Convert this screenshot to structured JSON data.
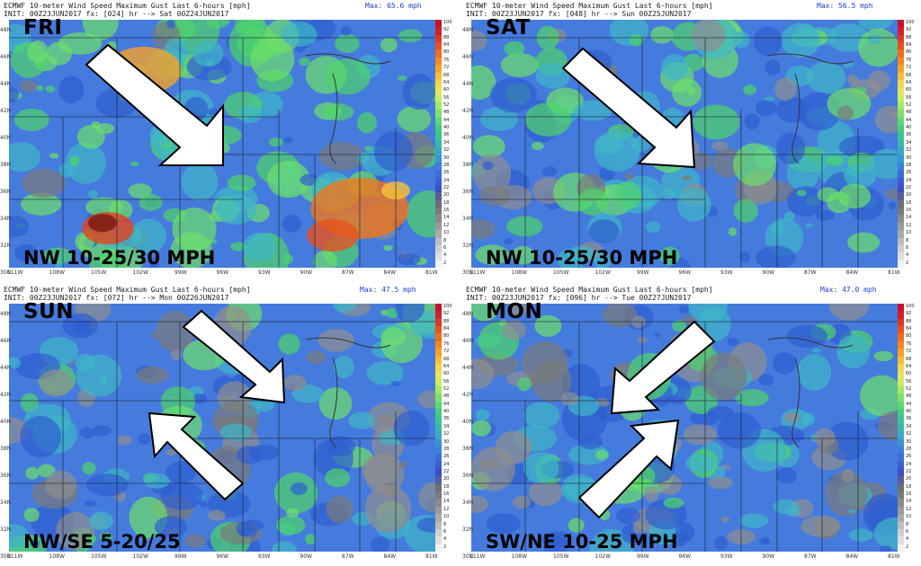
{
  "legend": {
    "levels": [
      "100",
      "92",
      "88",
      "84",
      "80",
      "76",
      "72",
      "68",
      "64",
      "60",
      "56",
      "52",
      "48",
      "44",
      "40",
      "36",
      "34",
      "32",
      "30",
      "28",
      "26",
      "24",
      "22",
      "20",
      "18",
      "16",
      "14",
      "12",
      "10",
      "8",
      "6",
      "4",
      "2"
    ],
    "colors": [
      "#c8102e",
      "#d2202a",
      "#dc3a24",
      "#e6521e",
      "#ee6e1c",
      "#f4881e",
      "#f8a22a",
      "#f8be3a",
      "#f4d44c",
      "#e6e45c",
      "#c8ec64",
      "#a4e864",
      "#7ee06a",
      "#5cd874",
      "#44cc80",
      "#3ec494",
      "#3ab8ac",
      "#38a8c4",
      "#3a94d4",
      "#3c80dc",
      "#3c6cdc",
      "#3c5cd4",
      "#3e4ec8",
      "#5a5e9c",
      "#6e6e78",
      "#7a7a7a",
      "#8a8a8a",
      "#9a9a9a",
      "#aaaaaa",
      "#bdbdbd",
      "#cfcfcf",
      "#e0e0e0",
      "#f2f2f2"
    ]
  },
  "lat_labels": [
    "48N",
    "46N",
    "44N",
    "42N",
    "40N",
    "38N",
    "36N",
    "34N",
    "32N",
    "30N"
  ],
  "lon_labels": [
    "111W",
    "108W",
    "105W",
    "102W",
    "99W",
    "96W",
    "93W",
    "90W",
    "87W",
    "84W",
    "81W"
  ],
  "colors": {
    "arrow_fill": "#ffffff",
    "arrow_stroke": "#000000",
    "max_text": "#1a3fd8",
    "map_blue": "#3a6fd8",
    "map_green": "#4fd46a"
  },
  "panels": [
    {
      "header_line1": "ECMWF 10-meter Wind Speed Maximum Gust Last 6-hours [mph]",
      "header_line2": "INIT: 00Z23JUN2017 fx: [024] hr --> Sat 00Z24JUN2017",
      "max": "Max: 65.6 mph",
      "day": "FRI",
      "wind": "NW 10-25/30 MPH",
      "arrows": [
        {
          "direction": "SE"
        }
      ]
    },
    {
      "header_line1": "ECMWF 10-meter Wind Speed Maximum Gust Last 6-hours [mph]",
      "header_line2": "INIT: 00Z23JUN2017 fx: [048] hr --> Sun 00Z25JUN2017",
      "max": "Max: 56.5 mph",
      "day": "SAT",
      "wind": "NW 10-25/30 MPH",
      "arrows": [
        {
          "direction": "SE"
        }
      ]
    },
    {
      "header_line1": "ECMWF 10-meter Wind Speed Maximum Gust Last 6-hours [mph]",
      "header_line2": "INIT: 00Z23JUN2017 fx: [072] hr --> Mon 00Z26JUN2017",
      "max": "Max: 47.5 mph",
      "day": "SUN",
      "wind": "NW/SE 5-20/25",
      "arrows": [
        {
          "direction": "SE"
        },
        {
          "direction": "NW"
        }
      ]
    },
    {
      "header_line1": "ECMWF 10-meter Wind Speed Maximum Gust Last 6-hours [mph]",
      "header_line2": "INIT: 00Z23JUN2017 fx: [096] hr --> Tue 00Z27JUN2017",
      "max": "Max: 47.0 mph",
      "day": "MON",
      "wind": "SW/NE 10-25 MPH",
      "arrows": [
        {
          "direction": "SW"
        },
        {
          "direction": "NE"
        }
      ]
    }
  ]
}
